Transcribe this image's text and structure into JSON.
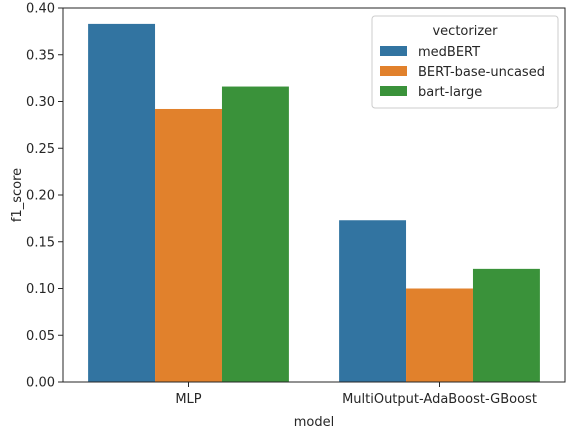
{
  "chart_data": {
    "type": "bar",
    "xlabel": "model",
    "ylabel": "f1_score",
    "ylim": [
      0,
      0.4
    ],
    "yticks": [
      "0.00",
      "0.05",
      "0.10",
      "0.15",
      "0.20",
      "0.25",
      "0.30",
      "0.35",
      "0.40"
    ],
    "categories": [
      "MLP",
      "MultiOutput-AdaBoost-GBoost"
    ],
    "legend": {
      "title": "vectorizer",
      "placement": "top-right"
    },
    "series": [
      {
        "name": "medBERT",
        "color": "#3274a1",
        "values": [
          0.383,
          0.173
        ]
      },
      {
        "name": "BERT-base-uncased",
        "color": "#e1812c",
        "values": [
          0.292,
          0.1
        ]
      },
      {
        "name": "bart-large",
        "color": "#3a923a",
        "values": [
          0.316,
          0.121
        ]
      }
    ]
  }
}
